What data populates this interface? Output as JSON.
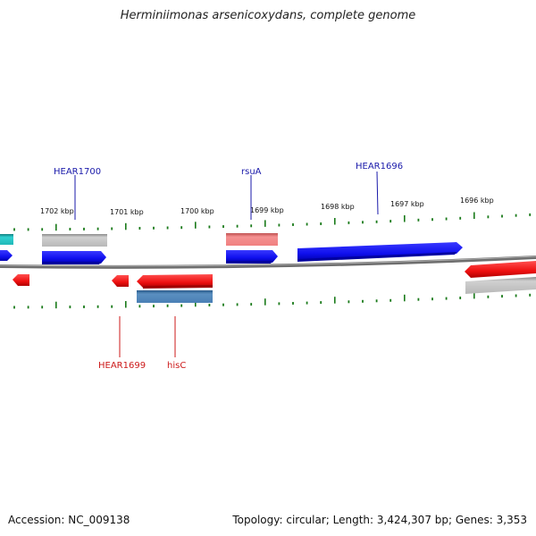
{
  "title": "Herminiimonas arsenicoxydans, complete genome",
  "footer": {
    "accession": "Accession: NC_009138",
    "stats": "Topology: circular; Length: 3,424,307 bp; Genes: 3,353"
  },
  "colors": {
    "forward_gene": "#1a1aff",
    "reverse_gene": "#ff1a1a",
    "rna_forward": "#f08080",
    "rna_reverse": "#4a7fb5",
    "pseudogene": "#b0b0b0",
    "cyan_feature": "#20c0c0",
    "backbone": "#7a7a7a",
    "tick": "#1a7a1a",
    "forward_label": "#1a1aaa",
    "reverse_label": "#cc1a1a"
  },
  "kbp_labels": [
    "1702 kbp",
    "1701 kbp",
    "1700 kbp",
    "1699 kbp",
    "1698 kbp",
    "1697 kbp",
    "1696 kbp"
  ],
  "gene_labels": {
    "forward": [
      "HEAR1700",
      "rsuA",
      "HEAR1696"
    ],
    "reverse": [
      "HEAR1699",
      "hisC"
    ]
  }
}
